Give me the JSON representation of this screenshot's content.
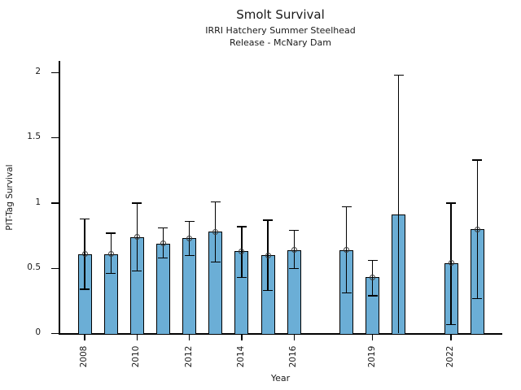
{
  "chart_data": {
    "type": "bar",
    "title": "Smolt Survival",
    "subtitle_line1": "IRRI Hatchery Summer Steelhead",
    "subtitle_line2": "Release - McNary Dam",
    "xlabel": "Year",
    "ylabel": "PIT-Tag Survival",
    "xlim": [
      2007,
      2024
    ],
    "ylim": [
      0,
      2.09
    ],
    "grid": false,
    "legend": false,
    "bar_color": "#6BAED6",
    "bar_edge_color": "#000000",
    "error_bar_color": "#000000",
    "marker_style": "open-circle",
    "y_ticks": [
      {
        "value": 0,
        "label": "0"
      },
      {
        "value": 0.5,
        "label": "0.5"
      },
      {
        "value": 1,
        "label": "1"
      },
      {
        "value": 1.5,
        "label": "1.5"
      },
      {
        "value": 2,
        "label": "2"
      }
    ],
    "x_ticks": [
      {
        "value": 2008,
        "label": "2008"
      },
      {
        "value": 2010,
        "label": "2010"
      },
      {
        "value": 2012,
        "label": "2012"
      },
      {
        "value": 2014,
        "label": "2014"
      },
      {
        "value": 2016,
        "label": "2016"
      },
      {
        "value": 2019,
        "label": "2019"
      },
      {
        "value": 2022,
        "label": "2022"
      }
    ],
    "bars": [
      {
        "year": 2008,
        "value": 0.61,
        "lo": 0.34,
        "hi": 0.88
      },
      {
        "year": 2009,
        "value": 0.61,
        "lo": 0.46,
        "hi": 0.77
      },
      {
        "year": 2010,
        "value": 0.74,
        "lo": 0.48,
        "hi": 1.0
      },
      {
        "year": 2011,
        "value": 0.69,
        "lo": 0.58,
        "hi": 0.81
      },
      {
        "year": 2012,
        "value": 0.73,
        "lo": 0.6,
        "hi": 0.86
      },
      {
        "year": 2013,
        "value": 0.78,
        "lo": 0.55,
        "hi": 1.01
      },
      {
        "year": 2014,
        "value": 0.63,
        "lo": 0.43,
        "hi": 0.82
      },
      {
        "year": 2015,
        "value": 0.6,
        "lo": 0.33,
        "hi": 0.87
      },
      {
        "year": 2016,
        "value": 0.64,
        "lo": 0.5,
        "hi": 0.79
      },
      {
        "year": 2018,
        "value": 0.64,
        "lo": 0.31,
        "hi": 0.97
      },
      {
        "year": 2019,
        "value": 0.43,
        "lo": 0.29,
        "hi": 0.56
      },
      {
        "year": 2020,
        "value": 0.91,
        "lo": 0.0,
        "hi": 1.98,
        "marker": false,
        "lo_cap": false
      },
      {
        "year": 2022,
        "value": 0.54,
        "lo": 0.07,
        "hi": 1.0
      },
      {
        "year": 2023,
        "value": 0.8,
        "lo": 0.27,
        "hi": 1.33
      }
    ]
  }
}
